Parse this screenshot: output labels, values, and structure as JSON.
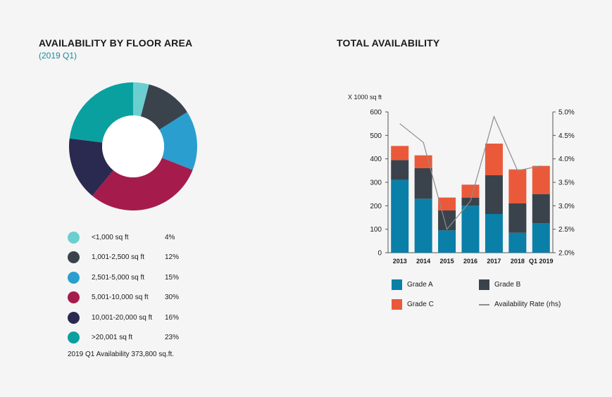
{
  "left": {
    "title": "AVAILABILITY BY FLOOR AREA",
    "subtitle": "(2019 Q1)",
    "note": "2019 Q1 Availability 373,800 sq.ft."
  },
  "right": {
    "title": "TOTAL AVAILABILITY",
    "unit_label": "X 1000 sq ft"
  },
  "colors": {
    "grade_a": "#0a7fa8",
    "grade_b": "#3a434c",
    "grade_c": "#ea5a3a",
    "line": "#8c8c8c"
  },
  "chart_data": [
    {
      "type": "pie",
      "title": "AVAILABILITY BY FLOOR AREA",
      "subtitle": "(2019 Q1)",
      "donut": true,
      "slices": [
        {
          "label": "<1,000 sq ft",
          "value": 4,
          "pct": "4%",
          "color": "#6ccfcf"
        },
        {
          "label": "1,001-2,500 sq ft",
          "value": 12,
          "pct": "12%",
          "color": "#3a434c"
        },
        {
          "label": "2,501-5,000 sq ft",
          "value": 15,
          "pct": "15%",
          "color": "#2a9fcf"
        },
        {
          "label": "5,001-10,000 sq ft",
          "value": 30,
          "pct": "30%",
          "color": "#a51c4c"
        },
        {
          "label": "10,001-20,000 sq ft",
          "value": 16,
          "pct": "16%",
          "color": "#2a2a50"
        },
        {
          "label": ">20,001 sq ft",
          "value": 23,
          "pct": "23%",
          "color": "#0aa0a0"
        }
      ]
    },
    {
      "type": "bar",
      "stacked": true,
      "title": "TOTAL AVAILABILITY",
      "ylabel": "X 1000 sq ft",
      "ylim": [
        0,
        600
      ],
      "yticks": [
        0,
        100,
        200,
        300,
        400,
        500,
        600
      ],
      "y2lim": [
        2.0,
        5.0
      ],
      "y2ticks": [
        "2.0%",
        "2.5%",
        "3.0%",
        "3.5%",
        "4.0%",
        "4.5%",
        "5.0%"
      ],
      "categories": [
        "2013",
        "2014",
        "2015",
        "2016",
        "2017",
        "2018",
        "Q1 2019"
      ],
      "series": [
        {
          "name": "Grade A",
          "key": "grade_a",
          "values": [
            310,
            230,
            95,
            200,
            165,
            85,
            125
          ]
        },
        {
          "name": "Grade B",
          "key": "grade_b",
          "values": [
            85,
            130,
            85,
            35,
            165,
            125,
            125
          ]
        },
        {
          "name": "Grade C",
          "key": "grade_c",
          "values": [
            60,
            55,
            55,
            55,
            135,
            145,
            120
          ]
        }
      ],
      "line": {
        "name": "Availability Rate (rhs)",
        "axis": "right",
        "values": [
          4.75,
          4.35,
          2.5,
          3.1,
          4.9,
          3.75,
          3.85
        ]
      }
    }
  ]
}
